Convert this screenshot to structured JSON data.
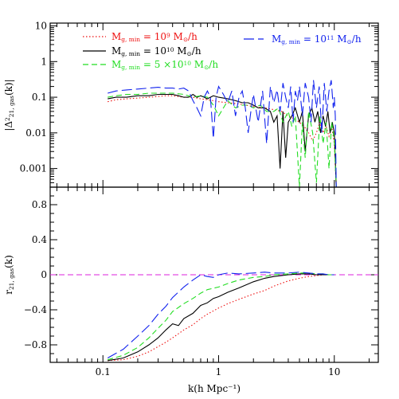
{
  "chart_data": [
    {
      "type": "line",
      "panel": "top",
      "ylabel": "|Δ²21, gas(k)|",
      "ylabel_parts": {
        "base": "|Δ",
        "sup": "2",
        "sub": "21, gas",
        "tail": "(k)|"
      },
      "xscale": "log",
      "yscale": "log",
      "xlim": [
        0.035,
        24
      ],
      "ylim": [
        0.0003,
        12
      ],
      "yticks": [
        {
          "value": 10,
          "label": "10"
        },
        {
          "value": 1,
          "label": "1"
        },
        {
          "value": 0.1,
          "label": "0.1"
        },
        {
          "value": 0.01,
          "label": "0.01"
        },
        {
          "value": 0.001,
          "label": "0.001"
        }
      ],
      "legend": [
        {
          "text_main": "M",
          "text_sub": "g, min",
          "text_eq": " = 10",
          "text_sup": "9",
          "text_unit": " M",
          "text_unit_sub": "⊙",
          "text_tail": "/h",
          "color": "#ee1111",
          "dash": "dot"
        },
        {
          "text_main": "M",
          "text_sub": "g, min",
          "text_eq": " = 10",
          "text_sup": "10",
          "text_unit": " M",
          "text_unit_sub": "⊙",
          "text_tail": "/h",
          "color": "#000000",
          "dash": "solid"
        },
        {
          "text_main": "M",
          "text_sub": "g, min",
          "text_eq": " = 5 ×10",
          "text_sup": "10",
          "text_unit": " M",
          "text_unit_sub": "⊙",
          "text_tail": "/h",
          "color": "#22dd22",
          "dash": "dash"
        },
        {
          "text_main": "M",
          "text_sub": "g, min",
          "text_eq": " = 10",
          "text_sup": "11",
          "text_unit": " M",
          "text_unit_sub": "⊙",
          "text_tail": "/h",
          "color": "#1122ee",
          "dash": "longdash"
        }
      ],
      "series": [
        {
          "color": "#ee1111",
          "dash": "dot",
          "x": [
            0.11,
            0.13,
            0.16,
            0.2,
            0.25,
            0.3,
            0.35,
            0.4,
            0.5,
            0.6,
            0.7,
            0.8,
            0.9,
            1.0,
            1.2,
            1.5,
            2.0,
            2.5,
            3.0,
            3.5,
            4.0,
            4.5,
            5.0,
            5.5,
            6.0,
            6.5,
            7.0,
            7.5,
            8.0,
            8.5,
            9.0,
            9.5,
            10.0,
            10.4
          ],
          "y": [
            0.075,
            0.085,
            0.09,
            0.095,
            0.1,
            0.105,
            0.11,
            0.11,
            0.1,
            0.1,
            0.09,
            0.085,
            0.08,
            0.075,
            0.07,
            0.065,
            0.055,
            0.05,
            0.045,
            0.04,
            0.03,
            0.025,
            0.02,
            0.015,
            0.01,
            0.006,
            0.01,
            0.02,
            0.01,
            0.015,
            0.008,
            0.015,
            0.005,
            0.0003
          ]
        },
        {
          "color": "#000000",
          "dash": "solid",
          "x": [
            0.11,
            0.13,
            0.16,
            0.2,
            0.25,
            0.3,
            0.35,
            0.4,
            0.45,
            0.5,
            0.55,
            0.6,
            0.65,
            0.7,
            0.75,
            0.8,
            0.85,
            0.9,
            1.0,
            1.2,
            1.4,
            1.6,
            1.8,
            2.0,
            2.2,
            2.5,
            2.8,
            3.0,
            3.2,
            3.4,
            3.6,
            3.8,
            4.0,
            4.3,
            4.6,
            5.0,
            5.3,
            5.6,
            6.0,
            6.4,
            6.8,
            7.2,
            7.6,
            8.0,
            8.4,
            8.8,
            9.2,
            9.6,
            10.0,
            10.4
          ],
          "y": [
            0.09,
            0.1,
            0.1,
            0.11,
            0.11,
            0.12,
            0.12,
            0.12,
            0.11,
            0.1,
            0.1,
            0.12,
            0.1,
            0.11,
            0.1,
            0.09,
            0.1,
            0.11,
            0.1,
            0.09,
            0.08,
            0.07,
            0.07,
            0.06,
            0.05,
            0.05,
            0.04,
            0.02,
            0.03,
            0.001,
            0.04,
            0.002,
            0.02,
            0.03,
            0.05,
            0.02,
            0.04,
            0.003,
            0.03,
            0.05,
            0.02,
            0.04,
            0.01,
            0.03,
            0.015,
            0.04,
            0.01,
            0.02,
            0.01,
            0.0003
          ]
        },
        {
          "color": "#22dd22",
          "dash": "dash",
          "x": [
            0.11,
            0.13,
            0.16,
            0.2,
            0.25,
            0.3,
            0.35,
            0.4,
            0.5,
            0.6,
            0.7,
            0.8,
            0.9,
            1.0,
            1.2,
            1.4,
            1.6,
            1.8,
            2.0,
            2.3,
            2.6,
            3.0,
            3.3,
            3.6,
            4.0,
            4.3,
            4.6,
            5.0,
            5.3,
            5.6,
            6.0,
            6.5,
            7.0,
            7.5,
            8.0,
            8.5,
            9.0,
            9.5,
            10.0,
            10.4
          ],
          "y": [
            0.1,
            0.11,
            0.12,
            0.12,
            0.13,
            0.13,
            0.13,
            0.13,
            0.12,
            0.1,
            0.11,
            0.1,
            0.06,
            0.03,
            0.08,
            0.05,
            0.06,
            0.06,
            0.05,
            0.06,
            0.04,
            0.04,
            0.05,
            0.02,
            0.04,
            0.015,
            0.03,
            0.0003,
            0.02,
            0.002,
            0.04,
            0.01,
            0.0004,
            0.03,
            0.005,
            0.02,
            0.001,
            0.02,
            0.006,
            0.0003
          ]
        },
        {
          "color": "#1122ee",
          "dash": "longdash",
          "x": [
            0.11,
            0.13,
            0.16,
            0.2,
            0.25,
            0.3,
            0.35,
            0.4,
            0.45,
            0.5,
            0.55,
            0.6,
            0.65,
            0.7,
            0.75,
            0.8,
            0.85,
            0.9,
            0.95,
            1.0,
            1.1,
            1.2,
            1.3,
            1.4,
            1.5,
            1.6,
            1.7,
            1.8,
            1.9,
            2.0,
            2.2,
            2.4,
            2.6,
            2.8,
            3.0,
            3.2,
            3.4,
            3.6,
            3.8,
            4.0,
            4.2,
            4.4,
            4.6,
            4.8,
            5.0,
            5.3,
            5.6,
            6.0,
            6.3,
            6.6,
            7.0,
            7.4,
            7.8,
            8.2,
            8.6,
            9.0,
            9.4,
            9.8,
            10.0,
            10.2,
            10.4
          ],
          "y": [
            0.13,
            0.15,
            0.16,
            0.17,
            0.18,
            0.19,
            0.18,
            0.18,
            0.17,
            0.18,
            0.15,
            0.08,
            0.05,
            0.03,
            0.1,
            0.15,
            0.1,
            0.007,
            0.1,
            0.2,
            0.12,
            0.07,
            0.15,
            0.03,
            0.1,
            0.15,
            0.05,
            0.01,
            0.04,
            0.12,
            0.02,
            0.15,
            0.005,
            0.2,
            0.07,
            0.16,
            0.04,
            0.25,
            0.1,
            0.05,
            0.2,
            0.02,
            0.15,
            0.08,
            0.2,
            0.03,
            0.25,
            0.1,
            0.02,
            0.3,
            0.05,
            0.2,
            0.01,
            0.25,
            0.04,
            0.15,
            0.3,
            0.05,
            0.1,
            0.03,
            0.0003
          ]
        }
      ]
    },
    {
      "type": "line",
      "panel": "bottom",
      "xlabel": "k(h Mpc⁻¹)",
      "ylabel": "r21, gas(k)",
      "ylabel_parts": {
        "base": "r",
        "sub": "21, gas",
        "tail": "(k)"
      },
      "xscale": "log",
      "xlim": [
        0.035,
        24
      ],
      "ylim": [
        -1.0,
        1.0
      ],
      "xticks": [
        {
          "value": 0.1,
          "label": "0.1"
        },
        {
          "value": 1,
          "label": "1"
        },
        {
          "value": 10,
          "label": "10"
        }
      ],
      "yticks": [
        {
          "value": 0.8,
          "label": "0.8"
        },
        {
          "value": 0.4,
          "label": "0.4"
        },
        {
          "value": 0,
          "label": "0"
        },
        {
          "value": -0.4,
          "label": "−0.4"
        },
        {
          "value": -0.8,
          "label": "−0.8"
        }
      ],
      "reference_line": {
        "y": 0,
        "color": "#dd22dd",
        "dash": "dash"
      },
      "series": [
        {
          "color": "#ee1111",
          "dash": "dot",
          "x": [
            0.11,
            0.15,
            0.2,
            0.25,
            0.3,
            0.35,
            0.4,
            0.5,
            0.6,
            0.7,
            0.8,
            1.0,
            1.2,
            1.5,
            2.0,
            2.5,
            3.0,
            4.0,
            5.0,
            6.0,
            7.0,
            8.0,
            9.0,
            10.0
          ],
          "y": [
            -0.98,
            -0.97,
            -0.93,
            -0.88,
            -0.82,
            -0.77,
            -0.72,
            -0.63,
            -0.57,
            -0.5,
            -0.45,
            -0.38,
            -0.33,
            -0.28,
            -0.22,
            -0.18,
            -0.13,
            -0.07,
            -0.04,
            -0.02,
            -0.01,
            0.0,
            0.0,
            0.0
          ]
        },
        {
          "color": "#000000",
          "dash": "solid",
          "x": [
            0.11,
            0.15,
            0.2,
            0.25,
            0.3,
            0.35,
            0.4,
            0.45,
            0.5,
            0.6,
            0.7,
            0.8,
            0.9,
            1.0,
            1.2,
            1.5,
            2.0,
            2.5,
            3.0,
            4.0,
            5.0,
            6.0,
            7.0,
            8.0,
            9.0,
            10.0
          ],
          "y": [
            -0.98,
            -0.95,
            -0.88,
            -0.8,
            -0.72,
            -0.63,
            -0.56,
            -0.58,
            -0.5,
            -0.44,
            -0.35,
            -0.32,
            -0.27,
            -0.25,
            -0.2,
            -0.15,
            -0.08,
            -0.04,
            -0.02,
            0.0,
            0.01,
            0.01,
            0.0,
            0.0,
            0.0,
            0.0
          ]
        },
        {
          "color": "#22dd22",
          "dash": "dash",
          "x": [
            0.11,
            0.15,
            0.2,
            0.25,
            0.3,
            0.35,
            0.4,
            0.5,
            0.6,
            0.7,
            0.8,
            1.0,
            1.2,
            1.5,
            2.0,
            2.5,
            3.0,
            4.0,
            5.0,
            6.0,
            7.0,
            8.0,
            9.0,
            10.0
          ],
          "y": [
            -0.97,
            -0.92,
            -0.83,
            -0.72,
            -0.61,
            -0.52,
            -0.42,
            -0.33,
            -0.27,
            -0.21,
            -0.17,
            -0.14,
            -0.1,
            -0.06,
            -0.03,
            -0.02,
            0.0,
            0.01,
            0.02,
            0.02,
            0.01,
            0.01,
            0.0,
            0.0
          ]
        },
        {
          "color": "#1122ee",
          "dash": "longdash",
          "x": [
            0.11,
            0.15,
            0.2,
            0.25,
            0.3,
            0.35,
            0.4,
            0.5,
            0.6,
            0.7,
            0.8,
            0.9,
            1.0,
            1.2,
            1.5,
            2.0,
            2.5,
            3.0,
            4.0,
            5.0,
            6.0,
            7.0,
            8.0,
            9.0,
            10.0
          ],
          "y": [
            -0.95,
            -0.85,
            -0.7,
            -0.58,
            -0.45,
            -0.36,
            -0.26,
            -0.14,
            -0.06,
            0.0,
            -0.02,
            -0.03,
            0.0,
            0.02,
            0.01,
            0.02,
            0.03,
            0.02,
            0.02,
            0.03,
            0.02,
            0.01,
            0.01,
            0.0,
            0.0
          ]
        }
      ]
    }
  ]
}
